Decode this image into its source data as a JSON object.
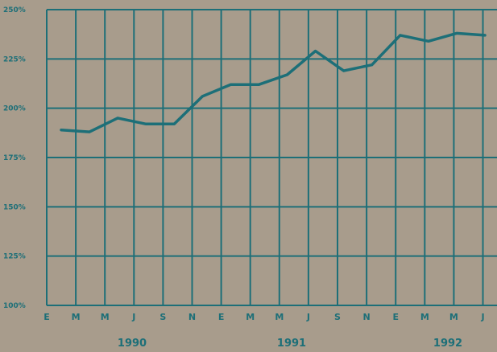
{
  "chart_data": {
    "type": "line",
    "title": "",
    "xlabel": "",
    "ylabel": "",
    "ylim": [
      100,
      250
    ],
    "grid": true,
    "y_tick_labels": [
      "100%",
      "125%",
      "150%",
      "175%",
      "200%",
      "225%",
      "250%"
    ],
    "y_tick_values": [
      100,
      125,
      150,
      175,
      200,
      225,
      250
    ],
    "x_tick_labels": [
      "E",
      "M",
      "M",
      "J",
      "S",
      "N",
      "E",
      "M",
      "M",
      "J",
      "S",
      "N",
      "E",
      "M",
      "M",
      "J"
    ],
    "year_labels": [
      "1990",
      "1991",
      "1992"
    ],
    "x": [
      "Jan 1990",
      "Mar 1990",
      "May 1990",
      "Jul 1990",
      "Sep 1990",
      "Nov 1990",
      "Jan 1991",
      "Mar 1991",
      "May 1991",
      "Jul 1991",
      "Sep 1991",
      "Nov 1991",
      "Jan 1992",
      "Mar 1992",
      "May 1992",
      "Jul 1992"
    ],
    "series": [
      {
        "values": [
          189,
          188,
          195,
          192,
          192,
          206,
          212,
          212,
          217,
          229,
          219,
          222,
          237,
          234,
          238,
          237
        ]
      }
    ]
  },
  "colors": {
    "background": "#a89c8c",
    "grid": "#1d6f78",
    "line": "#1d6f78",
    "text": "#1d6f78"
  }
}
